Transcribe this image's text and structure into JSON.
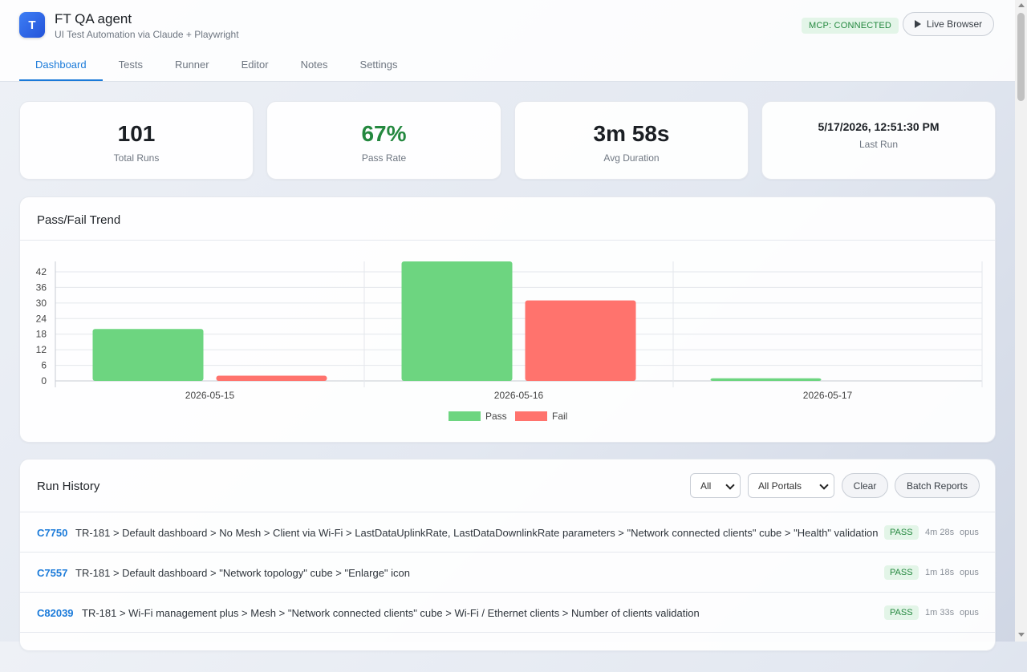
{
  "app": {
    "logo_letter": "T",
    "title": "FT QA agent",
    "subtitle": "UI Test Automation via Claude + Playwright",
    "mcp_status": "MCP: CONNECTED",
    "live_browser_label": "Live Browser"
  },
  "tabs": [
    {
      "label": "Dashboard",
      "active": true
    },
    {
      "label": "Tests",
      "active": false
    },
    {
      "label": "Runner",
      "active": false
    },
    {
      "label": "Editor",
      "active": false
    },
    {
      "label": "Notes",
      "active": false
    },
    {
      "label": "Settings",
      "active": false
    }
  ],
  "stats": {
    "total_runs": {
      "value": "101",
      "label": "Total Runs"
    },
    "pass_rate": {
      "value": "67%",
      "label": "Pass Rate"
    },
    "avg_duration": {
      "value": "3m 58s",
      "label": "Avg Duration"
    },
    "last_run": {
      "value": "5/17/2026, 12:51:30 PM",
      "label": "Last Run"
    }
  },
  "trend": {
    "title": "Pass/Fail Trend"
  },
  "chart_data": {
    "type": "bar",
    "categories": [
      "2026-05-15",
      "2026-05-16",
      "2026-05-17"
    ],
    "series": [
      {
        "name": "Pass",
        "values": [
          20,
          46,
          1
        ],
        "color": "#6dd580"
      },
      {
        "name": "Fail",
        "values": [
          2,
          31,
          0
        ],
        "color": "#ff736d"
      }
    ],
    "yticks": [
      0,
      6,
      12,
      18,
      24,
      30,
      36,
      42
    ],
    "ylim": [
      0,
      46
    ],
    "grid": true,
    "legend_position": "bottom-center"
  },
  "history": {
    "title": "Run History",
    "status_filter": "All",
    "portal_filter": "All Portals",
    "clear_label": "Clear",
    "batch_label": "Batch Reports",
    "rows": [
      {
        "id": "C7750",
        "title": "TR-181 > Default dashboard > No Mesh > Client via Wi-Fi > LastDataUplinkRate, LastDataDownlinkRate parameters > \"Network connected clients\" cube > \"Health\" validation",
        "status": "PASS",
        "duration": "4m 28s",
        "model": "opus"
      },
      {
        "id": "C7557",
        "title": "TR-181 > Default dashboard > \"Network topology\" cube > \"Enlarge\" icon",
        "status": "PASS",
        "duration": "1m 18s",
        "model": "opus"
      },
      {
        "id": "C82039",
        "title": "TR-181 > Wi-Fi management plus > Mesh > \"Network connected clients\" cube > Wi-Fi / Ethernet clients > Number of clients validation",
        "status": "PASS",
        "duration": "1m 33s",
        "model": "opus"
      }
    ]
  }
}
